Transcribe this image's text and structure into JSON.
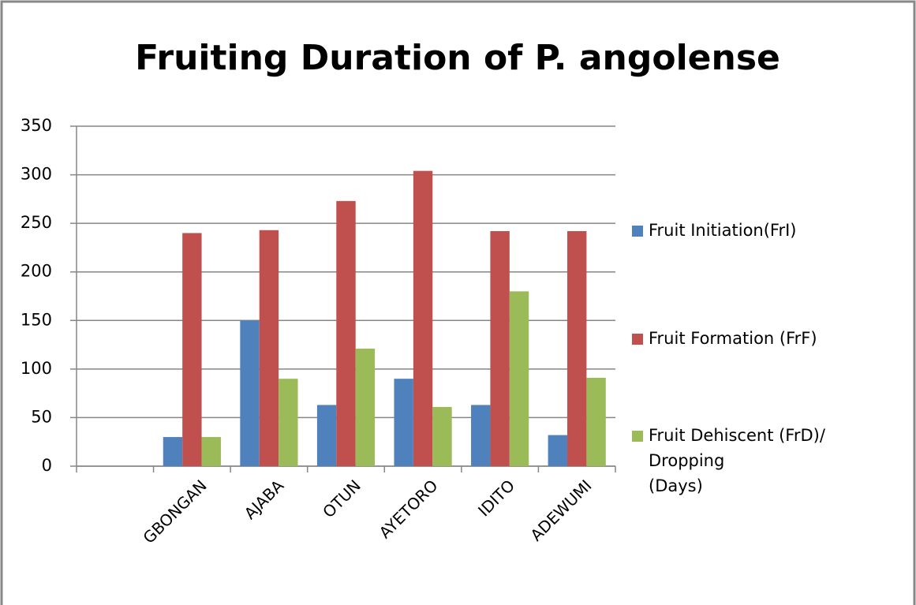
{
  "chart_data": {
    "type": "bar",
    "title": "Fruiting Duration of P. angolense",
    "categories": [
      null,
      "GBONGAN",
      "AJABA",
      "OTUN",
      "AYETORO",
      "IDITO",
      "ADEWUMI"
    ],
    "series": [
      {
        "name": "Fruit Initiation(FrI)",
        "color": "#4f81bd",
        "values": [
          null,
          30,
          150,
          63,
          90,
          63,
          32
        ]
      },
      {
        "name": "Fruit Formation (FrF)",
        "color": "#c0504d",
        "values": [
          null,
          240,
          243,
          273,
          304,
          242,
          242
        ]
      },
      {
        "name": "Fruit Dehiscent (FrD)/ Dropping (Days)",
        "color": "#9bbb59",
        "values": [
          null,
          30,
          90,
          121,
          61,
          180,
          91
        ]
      }
    ],
    "ylim": [
      0,
      350
    ],
    "yticks": [
      0,
      50,
      100,
      150,
      200,
      250,
      300,
      350
    ],
    "grid": true,
    "legend": "right"
  }
}
